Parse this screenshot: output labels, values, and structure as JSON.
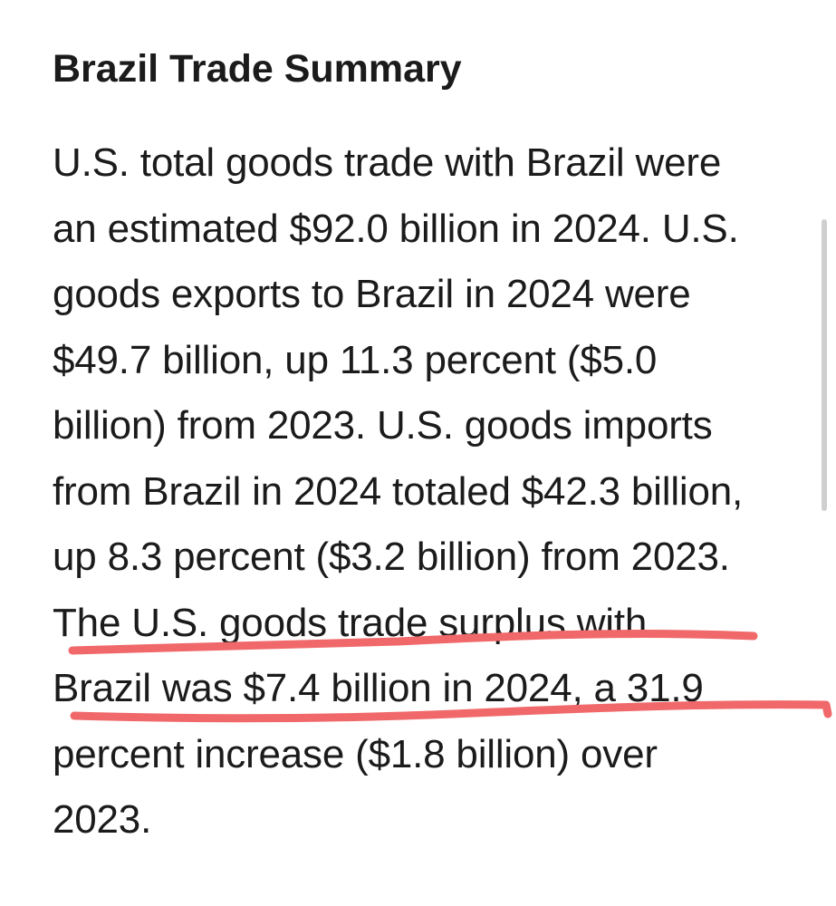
{
  "section": {
    "title": "Brazil Trade Summary",
    "lines": [
      "U.S. total goods trade with Brazil were",
      "an estimated $92.0 billion in 2024. U.S.",
      "goods exports to Brazil in 2024 were",
      "$49.7 billion, up 11.3 percent ($5.0",
      "billion) from 2023. U.S. goods imports",
      "from Brazil in 2024 totaled $42.3 billion,",
      "up 8.3 percent ($3.2 billion) from 2023.",
      "The U.S. goods trade surplus with",
      "Brazil was $7.4 billion in 2024, a 31.9",
      "percent increase ($1.8 billion) over",
      "2023."
    ]
  },
  "annotation": {
    "color": "#f0686a"
  }
}
